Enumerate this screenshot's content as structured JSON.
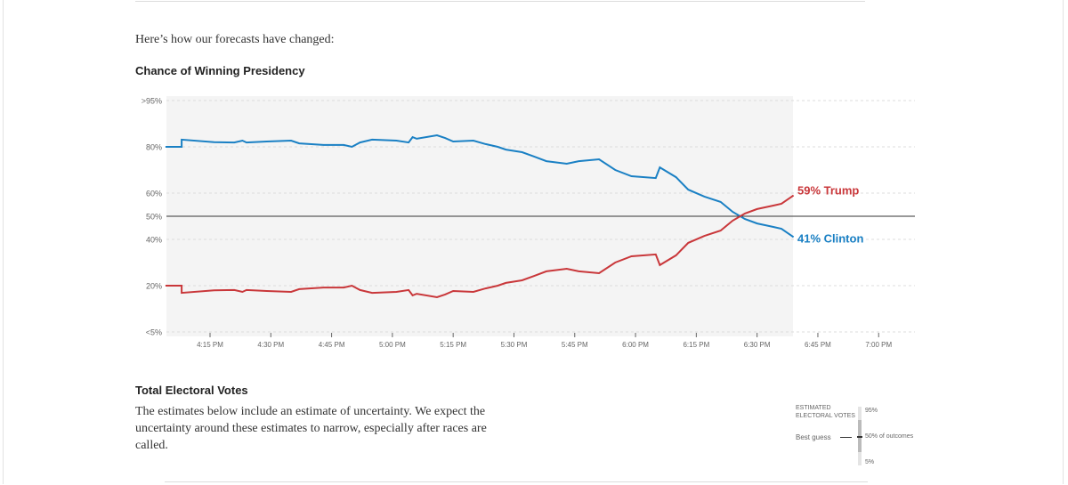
{
  "intro": "Here’s how our forecasts have changed:",
  "chart_data": {
    "type": "line",
    "title": "Chance of Winning Presidency",
    "x_unit": "minutes after 4:00 PM",
    "y_ticks": [
      {
        "v": 100,
        "label": ">95%"
      },
      {
        "v": 80,
        "label": "80%"
      },
      {
        "v": 60,
        "label": "60%"
      },
      {
        "v": 50,
        "label": "50%"
      },
      {
        "v": 40,
        "label": "40%"
      },
      {
        "v": 20,
        "label": "20%"
      },
      {
        "v": 0,
        "label": "<5%"
      }
    ],
    "x_ticks": [
      {
        "t": 15,
        "label": "4:15 PM"
      },
      {
        "t": 30,
        "label": "4:30 PM"
      },
      {
        "t": 45,
        "label": "4:45 PM"
      },
      {
        "t": 60,
        "label": "5:00 PM"
      },
      {
        "t": 75,
        "label": "5:15 PM"
      },
      {
        "t": 90,
        "label": "5:30 PM"
      },
      {
        "t": 105,
        "label": "5:45 PM"
      },
      {
        "t": 120,
        "label": "6:00 PM"
      },
      {
        "t": 135,
        "label": "6:15 PM"
      },
      {
        "t": 150,
        "label": "6:30 PM"
      },
      {
        "t": 165,
        "label": "6:45 PM"
      },
      {
        "t": 180,
        "label": "7:00 PM"
      }
    ],
    "xlim": [
      4,
      183
    ],
    "ylim": [
      0,
      100
    ],
    "x": [
      4,
      8,
      8,
      16,
      21,
      23,
      24,
      29,
      35,
      37,
      43,
      48,
      50,
      52,
      55,
      61,
      64,
      65,
      66,
      71,
      73,
      75,
      80,
      83,
      86,
      88,
      92,
      95,
      98,
      103,
      106,
      111,
      115,
      119,
      125,
      126,
      130,
      133,
      137,
      141,
      144,
      147,
      150,
      154,
      156,
      159
    ],
    "series": [
      {
        "name": "Clinton",
        "color": "#1a80c4",
        "label": "41% Clinton",
        "values": [
          80,
          80,
          83.1,
          82,
          81.9,
          82.7,
          81.9,
          82.3,
          82.7,
          81.5,
          80.8,
          80.8,
          80,
          81.9,
          83.1,
          82.7,
          81.9,
          84.2,
          83.5,
          85,
          83.8,
          82.3,
          82.7,
          81.2,
          80,
          78.8,
          77.7,
          75.8,
          73.8,
          72.7,
          73.8,
          74.6,
          70,
          67.3,
          66.5,
          71.1,
          66.9,
          61.5,
          58.5,
          56.2,
          51.9,
          48.8,
          46.9,
          45.4,
          44.6,
          41
        ]
      },
      {
        "name": "Trump",
        "color": "#c9373a",
        "label": "59% Trump",
        "values": "complement"
      }
    ]
  },
  "section2": {
    "title": "Total Electoral Votes",
    "text": "The estimates below include an estimate of uncertainty. We expect the uncertainty around these estimates to narrow, especially after races are called."
  },
  "legend": {
    "title1": "ESTIMATED",
    "title2": "ELECTORAL VOTES",
    "best": "Best guess",
    "p95": "95%",
    "p50": "50% of outcomes",
    "p5": "5%"
  }
}
